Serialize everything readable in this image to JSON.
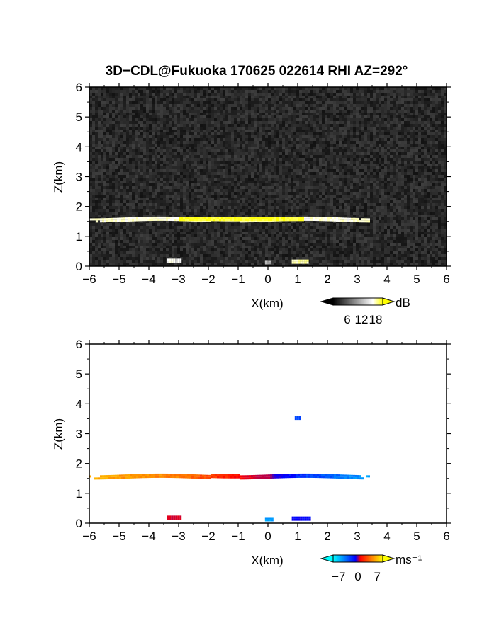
{
  "title": "3D−CDL@Fukuoka 170625 022614 RHI AZ=292°",
  "chart_data": [
    {
      "type": "heatmap",
      "panel": "reflectivity",
      "xlabel": "X(km)",
      "ylabel": "Z(km)",
      "xlim": [
        -6,
        6
      ],
      "ylim": [
        0,
        6
      ],
      "x_ticks": [
        "−6",
        "−5",
        "−4",
        "−3",
        "−2",
        "−1",
        "0",
        "1",
        "2",
        "3",
        "4",
        "5",
        "6"
      ],
      "y_ticks": [
        "0",
        "1",
        "2",
        "3",
        "4",
        "5",
        "6"
      ],
      "grid": false,
      "background": "noise",
      "colorbar": {
        "unit": "dB",
        "ticks": [
          "6",
          "12",
          "18"
        ],
        "range": [
          0,
          21
        ],
        "colors": [
          "#000000",
          "#ffffff",
          "#ffff00"
        ]
      },
      "features": [
        {
          "label": "layer",
          "x_range": [
            -6,
            3.5
          ],
          "z": 1.55,
          "thickness_km": 0.12,
          "value_db": 12
        },
        {
          "label": "strong core",
          "x_range": [
            -3,
            1.2
          ],
          "z": 1.55,
          "thickness_km": 0.08,
          "value_db": 19
        },
        {
          "label": "clutter",
          "x_range": [
            -3.4,
            -2.9
          ],
          "z": 0.15,
          "value_db": 10
        },
        {
          "label": "clutter",
          "x_range": [
            -0.1,
            0.1
          ],
          "z": 0.1,
          "value_db": 8
        },
        {
          "label": "clutter",
          "x_range": [
            0.8,
            1.3
          ],
          "z": 0.12,
          "value_db": 14
        }
      ]
    },
    {
      "type": "heatmap",
      "panel": "doppler_velocity",
      "xlabel": "X(km)",
      "ylabel": "Z(km)",
      "xlim": [
        -6,
        6
      ],
      "ylim": [
        0,
        6
      ],
      "x_ticks": [
        "−6",
        "−5",
        "−4",
        "−3",
        "−2",
        "−1",
        "0",
        "1",
        "2",
        "3",
        "4",
        "5",
        "6"
      ],
      "y_ticks": [
        "0",
        "1",
        "2",
        "3",
        "4",
        "5",
        "6"
      ],
      "grid": false,
      "colorbar": {
        "unit": "ms⁻¹",
        "ticks": [
          "−7",
          "0",
          "7"
        ],
        "range": [
          -9,
          9
        ],
        "colors": [
          "#00ffff",
          "#0000ff",
          "#ff0000",
          "#ffff00"
        ]
      },
      "features": [
        {
          "label": "layer",
          "x_range": [
            -6,
            3.5
          ],
          "z": 1.55,
          "thickness_km": 0.12,
          "velocity_profile": [
            [
              -6,
              7
            ],
            [
              -3,
              6
            ],
            [
              -1,
              3
            ],
            [
              0,
              1
            ],
            [
              0.2,
              -2
            ],
            [
              1,
              -4
            ],
            [
              3.5,
              -7
            ]
          ]
        },
        {
          "label": "clutter",
          "x_range": [
            -3.4,
            -2.9
          ],
          "z": 0.15,
          "velocity": 2
        },
        {
          "label": "clutter",
          "x_range": [
            -0.1,
            0.15
          ],
          "z": 0.1,
          "velocity": -7
        },
        {
          "label": "clutter",
          "x_range": [
            0.8,
            1.4
          ],
          "z": 0.12,
          "velocity": -3
        },
        {
          "label": "echo",
          "x_range": [
            0.9,
            1.1
          ],
          "z": 3.5,
          "velocity": -5
        }
      ]
    }
  ]
}
